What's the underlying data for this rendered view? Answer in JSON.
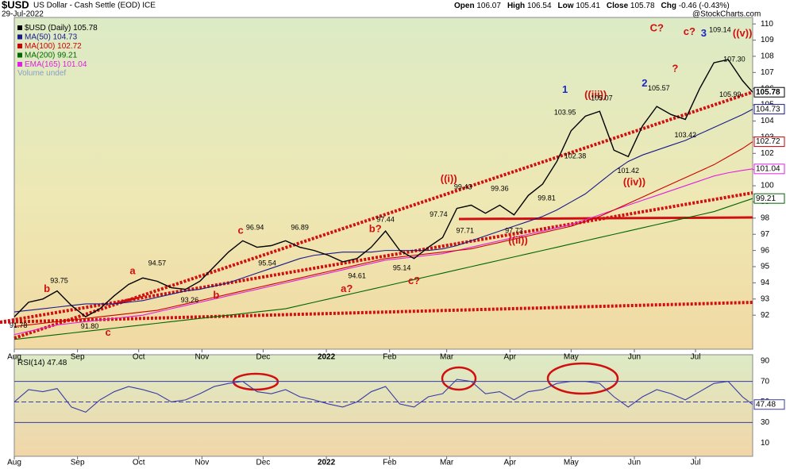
{
  "chart_data": {
    "type": "line",
    "symbol": "$USD",
    "description": "US Dollar - Cash Settle (EOD) ICE",
    "date": "29-Jul-2022",
    "source": "@StockCharts.com",
    "stats": [
      {
        "label": "Open",
        "value": 106.07
      },
      {
        "label": "High",
        "value": 106.54
      },
      {
        "label": "Low",
        "value": 105.41
      },
      {
        "label": "Close",
        "value": 105.78
      },
      {
        "label": "Chg",
        "value": "-0.46 (-0.43%)"
      }
    ],
    "volume_label": "Volume undef",
    "xlim": [
      0,
      362
    ],
    "xticks": [
      {
        "value": 0,
        "label": "Aug"
      },
      {
        "value": 31,
        "label": "Sep"
      },
      {
        "value": 61,
        "label": "Oct"
      },
      {
        "value": 92,
        "label": "Nov"
      },
      {
        "value": 122,
        "label": "Dec"
      },
      {
        "value": 153,
        "label": "2022"
      },
      {
        "value": 184,
        "label": "Feb"
      },
      {
        "value": 212,
        "label": "Mar"
      },
      {
        "value": 243,
        "label": "Apr"
      },
      {
        "value": 273,
        "label": "May"
      },
      {
        "value": 304,
        "label": "Jun"
      },
      {
        "value": 334,
        "label": "Jul"
      }
    ],
    "ylim": [
      89.9,
      110.4
    ],
    "yticks": [
      92,
      93,
      94,
      95,
      96,
      97,
      98,
      99,
      100,
      101,
      102,
      103,
      104,
      105,
      106,
      107,
      108,
      109,
      110
    ],
    "x": [
      0,
      7,
      14,
      21,
      28,
      35,
      42,
      49,
      56,
      63,
      70,
      77,
      84,
      91,
      98,
      105,
      112,
      119,
      126,
      133,
      140,
      147,
      154,
      161,
      168,
      175,
      182,
      189,
      196,
      203,
      210,
      217,
      224,
      231,
      238,
      245,
      252,
      259,
      266,
      273,
      280,
      287,
      294,
      301,
      308,
      315,
      322,
      329,
      336,
      343,
      350,
      357,
      362
    ],
    "series": [
      {
        "name": "$USD (Daily)",
        "last": 105.78,
        "color": "#000000",
        "values": [
          91.9,
          92.8,
          93.0,
          93.5,
          92.6,
          91.9,
          92.4,
          93.2,
          93.9,
          94.3,
          94.1,
          93.7,
          93.6,
          94.1,
          95.0,
          95.9,
          96.6,
          96.2,
          96.3,
          96.6,
          96.2,
          96.0,
          95.7,
          95.3,
          95.5,
          96.2,
          97.2,
          96.0,
          95.5,
          96.2,
          96.8,
          98.6,
          98.8,
          98.3,
          98.8,
          98.2,
          99.4,
          100.1,
          101.5,
          103.4,
          104.3,
          104.6,
          102.2,
          101.8,
          103.7,
          104.9,
          104.4,
          104.1,
          106.0,
          107.6,
          107.8,
          106.5,
          105.78
        ]
      },
      {
        "name": "MA(50)",
        "last": 104.73,
        "color": "#1a1a8c",
        "values": [
          92.2,
          92.3,
          92.4,
          92.5,
          92.6,
          92.7,
          92.7,
          92.7,
          92.8,
          92.9,
          93.1,
          93.3,
          93.5,
          93.6,
          93.8,
          94.0,
          94.3,
          94.6,
          94.9,
          95.2,
          95.5,
          95.7,
          95.8,
          95.9,
          95.9,
          95.9,
          96.0,
          96.0,
          96.0,
          96.0,
          96.1,
          96.3,
          96.6,
          96.9,
          97.2,
          97.5,
          97.8,
          98.1,
          98.5,
          99.0,
          99.5,
          100.2,
          100.9,
          101.5,
          101.9,
          102.2,
          102.5,
          102.8,
          103.2,
          103.6,
          104.0,
          104.4,
          104.73
        ]
      },
      {
        "name": "MA(100)",
        "last": 102.72,
        "color": "#cc0000",
        "values": [
          91.3,
          91.4,
          91.5,
          91.6,
          91.7,
          91.8,
          91.9,
          92.0,
          92.1,
          92.2,
          92.3,
          92.5,
          92.7,
          92.9,
          93.1,
          93.3,
          93.5,
          93.7,
          93.9,
          94.1,
          94.3,
          94.5,
          94.7,
          94.9,
          95.1,
          95.3,
          95.5,
          95.6,
          95.7,
          95.8,
          95.9,
          96.0,
          96.1,
          96.3,
          96.5,
          96.7,
          96.9,
          97.1,
          97.3,
          97.5,
          97.8,
          98.1,
          98.5,
          98.9,
          99.3,
          99.7,
          100.1,
          100.5,
          100.9,
          101.3,
          101.8,
          102.3,
          102.72
        ]
      },
      {
        "name": "MA(200)",
        "last": 99.21,
        "color": "#006600",
        "values": [
          90.5,
          90.6,
          90.7,
          90.8,
          90.9,
          91.0,
          91.1,
          91.2,
          91.3,
          91.4,
          91.5,
          91.6,
          91.7,
          91.8,
          91.9,
          92.0,
          92.1,
          92.2,
          92.3,
          92.4,
          92.6,
          92.8,
          93.0,
          93.2,
          93.4,
          93.6,
          93.8,
          94.0,
          94.2,
          94.4,
          94.6,
          94.8,
          95.0,
          95.2,
          95.4,
          95.6,
          95.8,
          96.0,
          96.2,
          96.4,
          96.6,
          96.8,
          97.0,
          97.2,
          97.4,
          97.6,
          97.8,
          98.0,
          98.2,
          98.4,
          98.7,
          99.0,
          99.21
        ]
      },
      {
        "name": "EMA(165)",
        "last": 101.04,
        "color": "#e020e0",
        "values": [
          90.8,
          91.0,
          91.2,
          91.4,
          91.5,
          91.6,
          91.7,
          91.8,
          91.9,
          92.0,
          92.2,
          92.4,
          92.6,
          92.8,
          93.0,
          93.2,
          93.4,
          93.6,
          93.8,
          94.0,
          94.2,
          94.4,
          94.6,
          94.8,
          95.0,
          95.2,
          95.4,
          95.5,
          95.6,
          95.7,
          95.8,
          96.0,
          96.2,
          96.4,
          96.6,
          96.8,
          97.0,
          97.2,
          97.4,
          97.6,
          97.9,
          98.2,
          98.5,
          98.8,
          99.1,
          99.4,
          99.7,
          100.0,
          100.3,
          100.6,
          100.8,
          100.95,
          101.04
        ]
      }
    ],
    "annotations": [
      "91.78",
      "b",
      "93.75",
      "91.80",
      "c",
      "a",
      "94.57",
      "93.26",
      "b",
      "c",
      "96.94",
      "95.54",
      "96.89",
      "a?",
      "94.61",
      "b?",
      "97.44",
      "95.14",
      "c?",
      "97.74",
      "((i))",
      "99.43",
      "97.71",
      "99.36",
      "97.73",
      "((ii))",
      "99.81",
      "1",
      "103.95",
      "102.38",
      "((iii))",
      "105.07",
      "101.42",
      "((iv))",
      "2",
      "105.57",
      "?",
      "103.42",
      "C?",
      "c?",
      "3",
      "109.14",
      "107.30",
      "105.99",
      "((v))"
    ],
    "rsi": {
      "name": "RSI(14)",
      "last": 47.48,
      "color": "#3a3aa8",
      "ylim": [
        -3,
        96
      ],
      "yticks": [
        10,
        30,
        50,
        70,
        90
      ],
      "values": [
        50,
        62,
        60,
        63,
        45,
        40,
        52,
        60,
        65,
        62,
        58,
        50,
        52,
        58,
        65,
        68,
        70,
        60,
        58,
        62,
        55,
        52,
        48,
        45,
        50,
        60,
        65,
        48,
        45,
        55,
        58,
        72,
        70,
        58,
        60,
        52,
        60,
        62,
        68,
        70,
        70,
        68,
        55,
        45,
        55,
        62,
        58,
        52,
        60,
        68,
        70,
        55,
        47.48
      ]
    }
  }
}
